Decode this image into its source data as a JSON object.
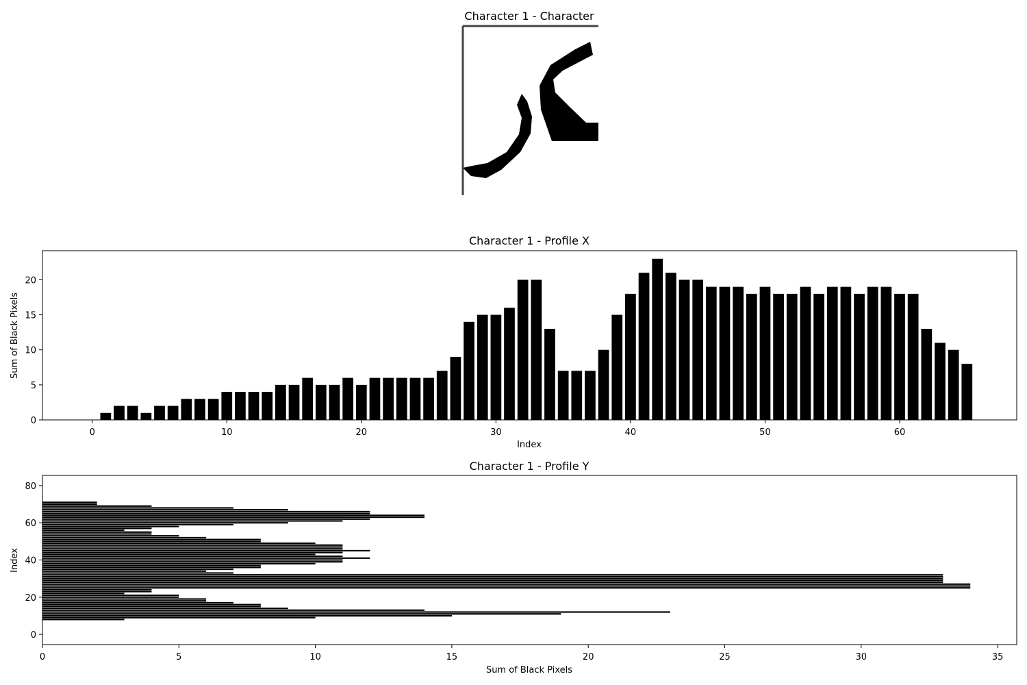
{
  "figure": {
    "background": "#ffffff",
    "bar_color": "#000000"
  },
  "image_panel": {
    "title": "Character 1 - Character",
    "glyph": "ک"
  },
  "chart_data": [
    {
      "type": "bar",
      "title": "Character 1 - Profile X",
      "xlabel": "Index",
      "ylabel": "Sum of Black Pixels",
      "x": [
        0,
        1,
        2,
        3,
        4,
        5,
        6,
        7,
        8,
        9,
        10,
        11,
        12,
        13,
        14,
        15,
        16,
        17,
        18,
        19,
        20,
        21,
        22,
        23,
        24,
        25,
        26,
        27,
        28,
        29,
        30,
        31,
        32,
        33,
        34,
        35,
        36,
        37,
        38,
        39,
        40,
        41,
        42,
        43,
        44,
        45,
        46,
        47,
        48,
        49,
        50,
        51,
        52,
        53,
        54,
        55,
        56,
        57,
        58,
        59,
        60,
        61,
        62,
        63,
        64,
        65
      ],
      "values": [
        0,
        1,
        2,
        2,
        1,
        2,
        2,
        3,
        3,
        3,
        4,
        4,
        4,
        4,
        5,
        5,
        6,
        5,
        5,
        6,
        5,
        6,
        6,
        6,
        6,
        6,
        7,
        9,
        14,
        15,
        15,
        16,
        20,
        20,
        13,
        7,
        7,
        7,
        10,
        15,
        18,
        21,
        23,
        21,
        20,
        20,
        19,
        19,
        19,
        18,
        19,
        18,
        18,
        19,
        18,
        19,
        19,
        18,
        19,
        19,
        18,
        18,
        13,
        11,
        10,
        8
      ],
      "xticks": [
        0,
        10,
        20,
        30,
        40,
        50,
        60
      ],
      "yticks": [
        0,
        5,
        10,
        15,
        20
      ],
      "xlim": [
        -3.7,
        68.7
      ],
      "ylim": [
        0,
        24.15
      ],
      "grid": false,
      "legend": "none"
    },
    {
      "type": "barh",
      "title": "Character 1 - Profile Y",
      "xlabel": "Sum of Black Pixels",
      "ylabel": "Index",
      "y": [
        0,
        1,
        2,
        3,
        4,
        5,
        6,
        7,
        8,
        9,
        10,
        11,
        12,
        13,
        14,
        15,
        16,
        17,
        18,
        19,
        20,
        21,
        22,
        23,
        24,
        25,
        26,
        27,
        28,
        29,
        30,
        31,
        32,
        33,
        34,
        35,
        36,
        37,
        38,
        39,
        40,
        41,
        42,
        43,
        44,
        45,
        46,
        47,
        48,
        49,
        50,
        51,
        52,
        53,
        54,
        55,
        56,
        57,
        58,
        59,
        60,
        61,
        62,
        63,
        64,
        65,
        66,
        67,
        68,
        69,
        70,
        71,
        72
      ],
      "values": [
        0,
        0,
        0,
        0,
        0,
        0,
        0,
        0,
        3,
        10,
        15,
        19,
        23,
        14,
        9,
        8,
        8,
        7,
        6,
        6,
        5,
        5,
        3,
        4,
        4,
        34,
        34,
        34,
        33,
        33,
        33,
        33,
        33,
        7,
        6,
        7,
        8,
        8,
        10,
        11,
        11,
        12,
        11,
        10,
        11,
        12,
        11,
        11,
        11,
        10,
        8,
        8,
        6,
        5,
        4,
        4,
        3,
        4,
        5,
        7,
        9,
        11,
        12,
        14,
        14,
        12,
        12,
        9,
        7,
        4,
        2,
        2,
        0
      ],
      "xticks": [
        0,
        5,
        10,
        15,
        20,
        25,
        30,
        35
      ],
      "yticks": [
        0,
        20,
        40,
        60,
        80
      ],
      "xlim": [
        0,
        35.7
      ],
      "ylim": [
        -5.5,
        85.5
      ],
      "grid": false,
      "legend": "none"
    }
  ]
}
